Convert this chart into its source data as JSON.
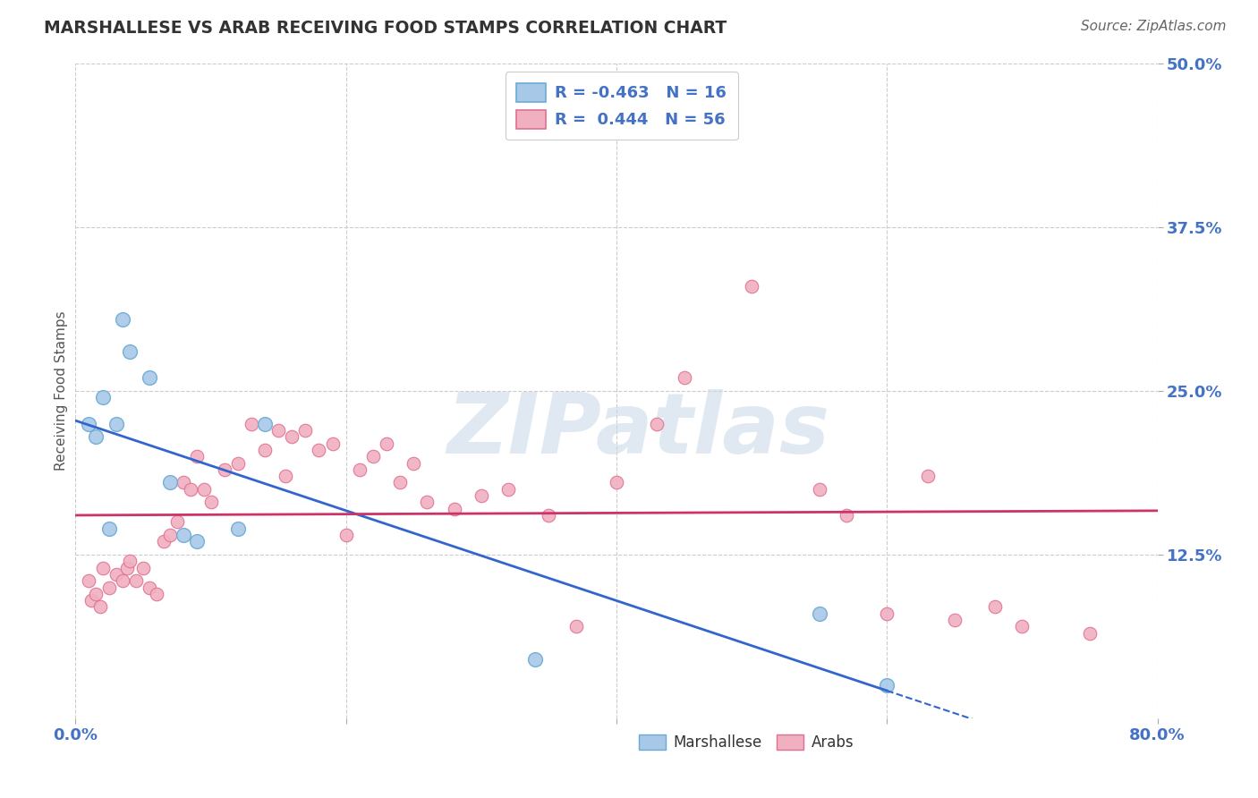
{
  "title": "MARSHALLESE VS ARAB RECEIVING FOOD STAMPS CORRELATION CHART",
  "source": "Source: ZipAtlas.com",
  "ylabel": "Receiving Food Stamps",
  "xlim": [
    0.0,
    80.0
  ],
  "ylim": [
    0.0,
    50.0
  ],
  "x_ticks": [
    0.0,
    20.0,
    40.0,
    60.0,
    80.0
  ],
  "x_tick_labels": [
    "0.0%",
    "",
    "",
    "",
    "80.0%"
  ],
  "y_ticks": [
    12.5,
    25.0,
    37.5,
    50.0
  ],
  "y_tick_labels": [
    "12.5%",
    "25.0%",
    "37.5%",
    "50.0%"
  ],
  "marshallese_color": "#a8c8e8",
  "marshallese_edge": "#6aaad4",
  "arab_color": "#f0b0c0",
  "arab_edge": "#e07090",
  "line_blue": "#3366cc",
  "line_pink": "#cc3366",
  "legend_R_marshallese": "-0.463",
  "legend_N_marshallese": "16",
  "legend_R_arab": "0.444",
  "legend_N_arab": "56",
  "marshallese_x": [
    1.0,
    1.5,
    2.0,
    2.5,
    3.0,
    3.5,
    4.0,
    5.5,
    7.0,
    8.0,
    9.0,
    12.0,
    14.0,
    34.0,
    55.0,
    60.0
  ],
  "marshallese_y": [
    22.5,
    21.5,
    24.5,
    14.5,
    22.5,
    30.5,
    28.0,
    26.0,
    18.0,
    14.0,
    13.5,
    14.5,
    22.5,
    4.5,
    8.0,
    2.5
  ],
  "arab_x": [
    1.0,
    1.2,
    1.5,
    1.8,
    2.0,
    2.5,
    3.0,
    3.5,
    3.8,
    4.0,
    4.5,
    5.0,
    5.5,
    6.0,
    6.5,
    7.0,
    7.5,
    8.0,
    8.5,
    9.0,
    9.5,
    10.0,
    11.0,
    12.0,
    13.0,
    14.0,
    15.0,
    15.5,
    16.0,
    17.0,
    18.0,
    19.0,
    20.0,
    21.0,
    22.0,
    23.0,
    24.0,
    25.0,
    26.0,
    28.0,
    30.0,
    32.0,
    35.0,
    37.0,
    40.0,
    43.0,
    45.0,
    50.0,
    55.0,
    57.0,
    60.0,
    63.0,
    65.0,
    68.0,
    70.0,
    75.0
  ],
  "arab_y": [
    10.5,
    9.0,
    9.5,
    8.5,
    11.5,
    10.0,
    11.0,
    10.5,
    11.5,
    12.0,
    10.5,
    11.5,
    10.0,
    9.5,
    13.5,
    14.0,
    15.0,
    18.0,
    17.5,
    20.0,
    17.5,
    16.5,
    19.0,
    19.5,
    22.5,
    20.5,
    22.0,
    18.5,
    21.5,
    22.0,
    20.5,
    21.0,
    14.0,
    19.0,
    20.0,
    21.0,
    18.0,
    19.5,
    16.5,
    16.0,
    17.0,
    17.5,
    15.5,
    7.0,
    18.0,
    22.5,
    26.0,
    33.0,
    17.5,
    15.5,
    8.0,
    18.5,
    7.5,
    8.5,
    7.0,
    6.5
  ],
  "watermark_text": "ZIPatlas",
  "background_color": "#ffffff",
  "grid_color": "#cccccc",
  "tick_color": "#4472c4",
  "title_color": "#333333",
  "source_color": "#666666"
}
